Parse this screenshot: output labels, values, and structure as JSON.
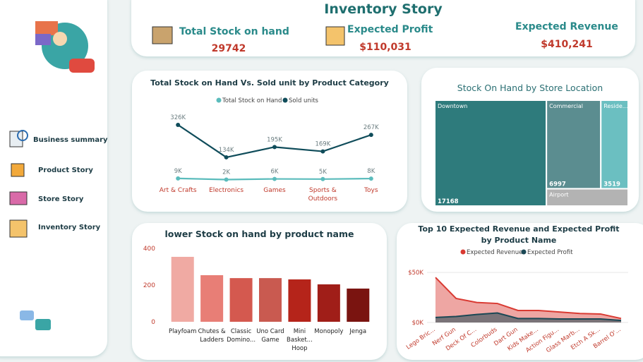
{
  "title": "Inventory Story",
  "sidebar": {
    "items": [
      "Business summary",
      "Product Story",
      "Store Story",
      "Inventory Story"
    ]
  },
  "kpis": [
    {
      "label": "Total Stock on hand",
      "value": "29742"
    },
    {
      "label": "Expected Profit",
      "value": "$110,031"
    },
    {
      "label": "Expected Revenue",
      "value": "$410,241"
    }
  ],
  "chart_data": [
    {
      "type": "line",
      "title": "Total Stock on Hand Vs. Sold unit by Product Category",
      "categories": [
        "Art & Crafts",
        "Electronics",
        "Games",
        "Sports & Outdoors",
        "Toys"
      ],
      "series": [
        {
          "name": "Total Stock on Hand",
          "color": "#5bbcbc",
          "values": [
            9000,
            2000,
            6000,
            5000,
            8000
          ],
          "value_labels": [
            "9K",
            "2K",
            "6K",
            "5K",
            "8K"
          ]
        },
        {
          "name": "Sold units",
          "color": "#0f4c5a",
          "values": [
            326000,
            134000,
            195000,
            169000,
            267000
          ],
          "value_labels": [
            "326K",
            "134K",
            "195K",
            "169K",
            "267K"
          ]
        }
      ]
    },
    {
      "type": "treemap",
      "title": "Stock On Hand by Store Location",
      "categories": [
        "Downtown",
        "Commercial",
        "Reside...",
        "Airport"
      ],
      "values": [
        17168,
        6997,
        3519,
        2058
      ],
      "colors": [
        "#2e7b7c",
        "#5b8d90",
        "#6bbfc1",
        "#b3b3b3"
      ]
    },
    {
      "type": "bar",
      "title": "lower Stock on hand by product name",
      "categories": [
        "Playfoam",
        "Chutes & Ladders",
        "Classic Domino...",
        "Uno Card Game",
        "Mini Basket... Hoop",
        "Monopoly",
        "Jenga"
      ],
      "values": [
        354,
        254,
        238,
        238,
        231,
        204,
        181
      ],
      "colors": [
        "#f0aaa3",
        "#e87e76",
        "#d4594f",
        "#c95a50",
        "#b5241a",
        "#a01e18",
        "#7a1410"
      ],
      "ylim": [
        0,
        400
      ],
      "yticks": [
        0,
        200,
        400
      ]
    },
    {
      "type": "area",
      "title": "Top 10 Expected Revenue and Expected Profit by Product Name",
      "categories": [
        "Lego Bric...",
        "Nerf Gun",
        "Deck Of C...",
        "Colorbuds",
        "Dart Gun",
        "Kids Make...",
        "Action Figu...",
        "Glass Marb...",
        "Etch A Sk...",
        "Barrel O'..."
      ],
      "series": [
        {
          "name": "Expected Revenue",
          "color": "#d93a32",
          "values": [
            45000,
            24000,
            20000,
            19000,
            12000,
            12000,
            10500,
            9000,
            8500,
            4000
          ]
        },
        {
          "name": "Expected Profit",
          "color": "#1b4855",
          "values": [
            5000,
            6000,
            8000,
            9500,
            4000,
            4000,
            3500,
            3500,
            3500,
            2000
          ]
        }
      ],
      "ylim": [
        0,
        55000
      ],
      "yticks": [
        {
          "value": 0,
          "label": "$0K"
        },
        {
          "value": 50000,
          "label": "$50K"
        }
      ]
    }
  ]
}
